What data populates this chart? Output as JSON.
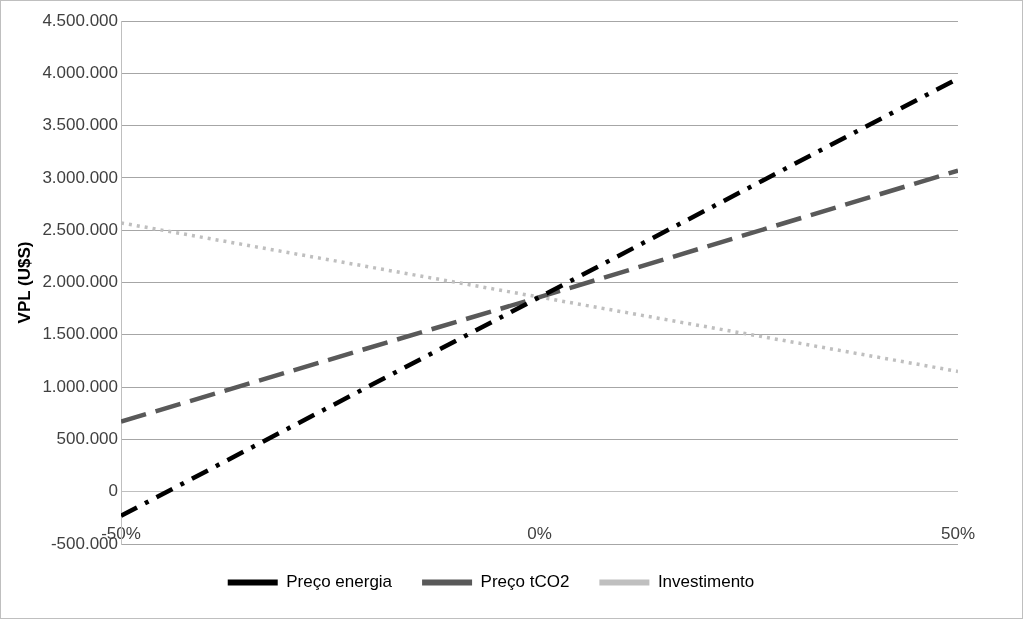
{
  "chart_data": {
    "type": "line",
    "ylabel": "VPL (U$S)",
    "x": [
      -50,
      0,
      50
    ],
    "series": [
      {
        "name": "Preço energia",
        "color": "#000000",
        "line_style": "dashdot",
        "values": [
          -230000,
          1860000,
          3950000
        ]
      },
      {
        "name": "Preço tCO2",
        "color": "#595959",
        "line_style": "dashed",
        "values": [
          670000,
          1860000,
          3070000
        ]
      },
      {
        "name": "Investimento",
        "color": "#bfbfbf",
        "line_style": "dotted",
        "values": [
          2570000,
          1860000,
          1150000
        ]
      }
    ],
    "xlim": [
      -50,
      50
    ],
    "xticks": [
      {
        "value": -50,
        "label": "-50%"
      },
      {
        "value": 0,
        "label": "0%"
      },
      {
        "value": 50,
        "label": "50%"
      }
    ],
    "ylim": [
      -500000,
      4500000
    ],
    "yticks": [
      {
        "value": -500000,
        "label": "-500.000"
      },
      0,
      {
        "value": 500000,
        "label": "500.000"
      },
      {
        "value": 1000000,
        "label": "1.000.000"
      },
      {
        "value": 1500000,
        "label": "1.500.000"
      },
      {
        "value": 2000000,
        "label": "2.000.000"
      },
      {
        "value": 2500000,
        "label": "2.500.000"
      },
      {
        "value": 3000000,
        "label": "3.000.000"
      },
      {
        "value": 3500000,
        "label": "3.500.000"
      },
      {
        "value": 4000000,
        "label": "4.000.000"
      },
      {
        "value": 4500000,
        "label": "4.500.000"
      }
    ],
    "grid": "y",
    "legend": "bottom",
    "marker": "none"
  }
}
